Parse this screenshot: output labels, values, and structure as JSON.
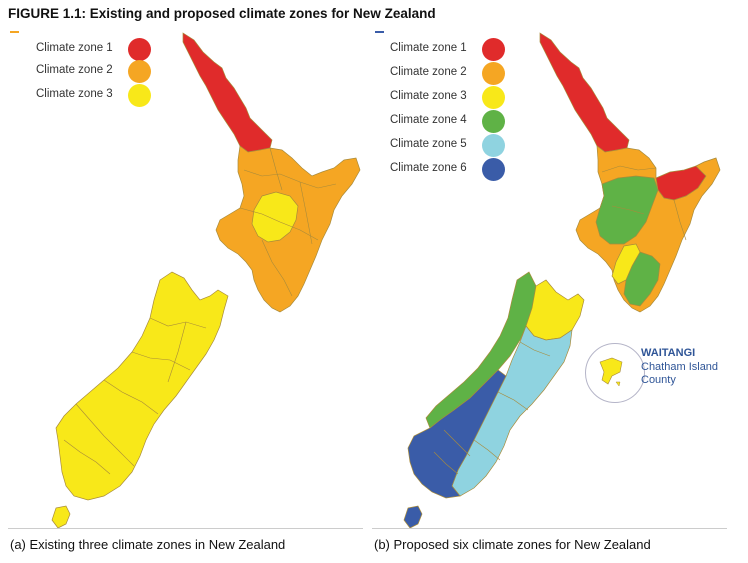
{
  "figure_title": "FIGURE 1.1: Existing and proposed climate zones for New Zealand",
  "colors": {
    "zone1": "#e02b2b",
    "zone2": "#f5a623",
    "zone3": "#f8e819",
    "zone4": "#5fb246",
    "zone5": "#8fd3e0",
    "zone6": "#3a5ca8",
    "border": "#a88b3b",
    "inset_text": "#2f5597"
  },
  "panel_a": {
    "legend": [
      {
        "label": "Climate zone 1",
        "color": "#e02b2b"
      },
      {
        "label": "Climate zone 2",
        "color": "#f5a623"
      },
      {
        "label": "Climate zone 3",
        "color": "#f8e819"
      }
    ],
    "caption": "(a) Existing three climate zones in New Zealand"
  },
  "panel_b": {
    "legend": [
      {
        "label": "Climate zone 1",
        "color": "#e02b2b"
      },
      {
        "label": "Climate zone 2",
        "color": "#f5a623"
      },
      {
        "label": "Climate zone 3",
        "color": "#f8e819"
      },
      {
        "label": "Climate zone 4",
        "color": "#5fb246"
      },
      {
        "label": "Climate zone 5",
        "color": "#8fd3e0"
      },
      {
        "label": "Climate zone 6",
        "color": "#3a5ca8"
      }
    ],
    "caption": "(b) Proposed six climate zones for New Zealand",
    "inset": {
      "line1": "WAITANGI",
      "line2": "Chatham Island",
      "line3": "County"
    }
  }
}
